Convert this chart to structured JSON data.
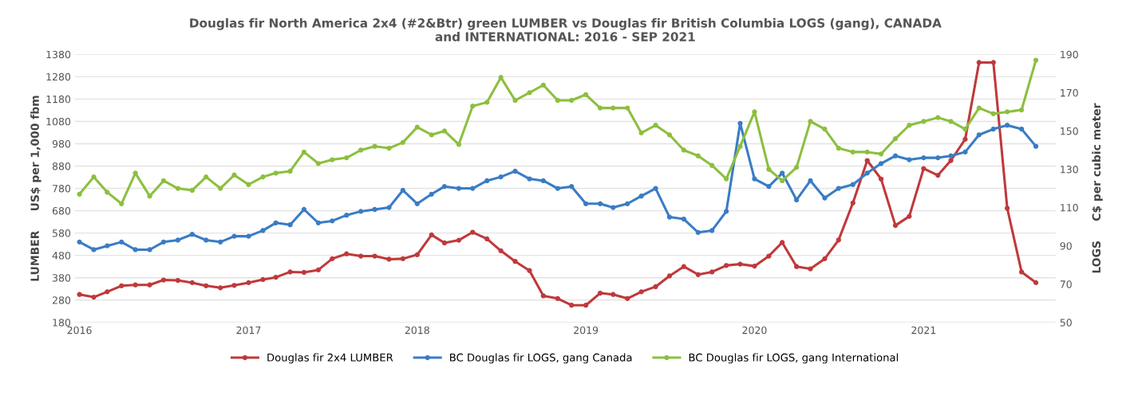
{
  "chart_data": {
    "type": "line",
    "title": "Douglas fir North America 2x4 (#2&Btr) green LUMBER vs Douglas fir British Columbia LOGS (gang), CANADA\nand INTERNATIONAL: 2016 - SEP 2021",
    "ylabel": "LUMBER     US$ per 1,000 fbm",
    "y2label": "LOGS     C$ per cubic meter",
    "x": [
      "2016-01",
      "2016-02",
      "2016-03",
      "2016-04",
      "2016-05",
      "2016-06",
      "2016-07",
      "2016-08",
      "2016-09",
      "2016-10",
      "2016-11",
      "2016-12",
      "2017-01",
      "2017-02",
      "2017-03",
      "2017-04",
      "2017-05",
      "2017-06",
      "2017-07",
      "2017-08",
      "2017-09",
      "2017-10",
      "2017-11",
      "2017-12",
      "2018-01",
      "2018-02",
      "2018-03",
      "2018-04",
      "2018-05",
      "2018-06",
      "2018-07",
      "2018-08",
      "2018-09",
      "2018-10",
      "2018-11",
      "2018-12",
      "2019-01",
      "2019-02",
      "2019-03",
      "2019-04",
      "2019-05",
      "2019-06",
      "2019-07",
      "2019-08",
      "2019-09",
      "2019-10",
      "2019-11",
      "2019-12",
      "2020-01",
      "2020-02",
      "2020-03",
      "2020-04",
      "2020-05",
      "2020-06",
      "2020-07",
      "2020-08",
      "2020-09",
      "2020-10",
      "2020-11",
      "2020-12",
      "2021-01",
      "2021-02",
      "2021-03",
      "2021-04",
      "2021-05",
      "2021-06",
      "2021-07",
      "2021-08",
      "2021-09"
    ],
    "series": [
      {
        "name": "Douglas fir 2x4 LUMBER",
        "color": "#c0393b",
        "values": [
          305,
          293,
          317,
          344,
          348,
          348,
          370,
          368,
          358,
          344,
          335,
          346,
          358,
          372,
          382,
          406,
          404,
          415,
          465,
          487,
          477,
          477,
          463,
          465,
          483,
          572,
          536,
          548,
          584,
          554,
          501,
          453,
          412,
          299,
          287,
          257,
          257,
          311,
          305,
          287,
          317,
          340,
          388,
          430,
          394,
          406,
          435,
          441,
          432,
          477,
          538,
          430,
          420,
          465,
          549,
          715,
          905,
          822,
          614,
          655,
          869,
          839,
          905,
          1000,
          1344,
          1344,
          691,
          406,
          358
        ]
      },
      {
        "name": "BC Douglas fir LOGS, gang Canada",
        "color": "#3a7cc4",
        "axis": "y2",
        "values": [
          92,
          88,
          90,
          92,
          88,
          88,
          92,
          93,
          96,
          93,
          92,
          95,
          95,
          98,
          102,
          101,
          109,
          102,
          103,
          106,
          108,
          109,
          110,
          119,
          112,
          117,
          121,
          120,
          120,
          124,
          126,
          129,
          125,
          124,
          120,
          121,
          112,
          112,
          110,
          112,
          116,
          120,
          105,
          104,
          97,
          98,
          108,
          154,
          125,
          121,
          128,
          114,
          124,
          115,
          120,
          122,
          128,
          133,
          137,
          135,
          136,
          136,
          137,
          139,
          148,
          151,
          153,
          151,
          142
        ]
      },
      {
        "name": "BC Douglas fir LOGS, gang International",
        "color": "#8cbf3f",
        "axis": "y2",
        "values": [
          117,
          126,
          118,
          112,
          128,
          116,
          124,
          120,
          119,
          126,
          120,
          127,
          122,
          126,
          128,
          129,
          139,
          133,
          135,
          136,
          140,
          142,
          141,
          144,
          152,
          148,
          150,
          143,
          163,
          165,
          178,
          166,
          170,
          174,
          166,
          166,
          169,
          162,
          162,
          162,
          149,
          153,
          148,
          140,
          137,
          132,
          125,
          142,
          160,
          130,
          124,
          131,
          155,
          151,
          141,
          139,
          139,
          138,
          146,
          153,
          155,
          157,
          155,
          151,
          162,
          159,
          160,
          161,
          187
        ]
      }
    ],
    "xlim": [
      "2015-12-22",
      "2021-10-14"
    ],
    "xticks": [
      {
        "value": "2016-01-01",
        "label": "2016"
      },
      {
        "value": "2017-01-01",
        "label": "2017"
      },
      {
        "value": "2018-01-01",
        "label": "2018"
      },
      {
        "value": "2019-01-01",
        "label": "2019"
      },
      {
        "value": "2020-01-01",
        "label": "2020"
      },
      {
        "value": "2021-01-01",
        "label": "2021"
      }
    ],
    "ylim": [
      180,
      1380
    ],
    "yticks": [
      180,
      280,
      380,
      480,
      580,
      680,
      780,
      880,
      980,
      1080,
      1180,
      1280,
      1380
    ],
    "y2lim": [
      50,
      190
    ],
    "y2ticks": [
      50,
      70,
      90,
      110,
      130,
      150,
      170,
      190
    ],
    "grid": "y",
    "legend": "bottom",
    "marker": "circle",
    "line_style": "solid"
  }
}
